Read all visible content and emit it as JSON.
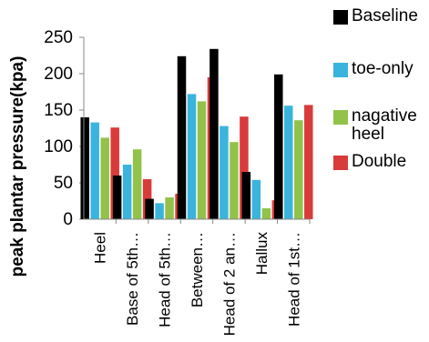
{
  "chart_data": {
    "type": "bar",
    "ylabel": "peak plantar pressure(kpa)",
    "xlabel": "",
    "ylim": [
      0,
      250
    ],
    "yticks": [
      0,
      50,
      100,
      150,
      200,
      250
    ],
    "grid": false,
    "legend_position": "right",
    "categories": [
      "Heel",
      "Base of 5th…",
      "Head of 5th…",
      "Between…",
      "Head of 2 an…",
      "Hallux",
      "Head of 1st…"
    ],
    "series": [
      {
        "name": "Baseline",
        "color": "#000000",
        "values": [
          140,
          60,
          28,
          224,
          234,
          65,
          199
        ]
      },
      {
        "name": "toe-only",
        "color": "#3ab4dc",
        "values": [
          133,
          75,
          22,
          172,
          128,
          54,
          156
        ]
      },
      {
        "name": "nagative heel",
        "color": "#92c24a",
        "values": [
          112,
          96,
          30,
          162,
          106,
          15,
          136
        ]
      },
      {
        "name": "Double",
        "color": "#d93b3b",
        "values": [
          126,
          55,
          35,
          195,
          141,
          26,
          157
        ]
      }
    ]
  }
}
